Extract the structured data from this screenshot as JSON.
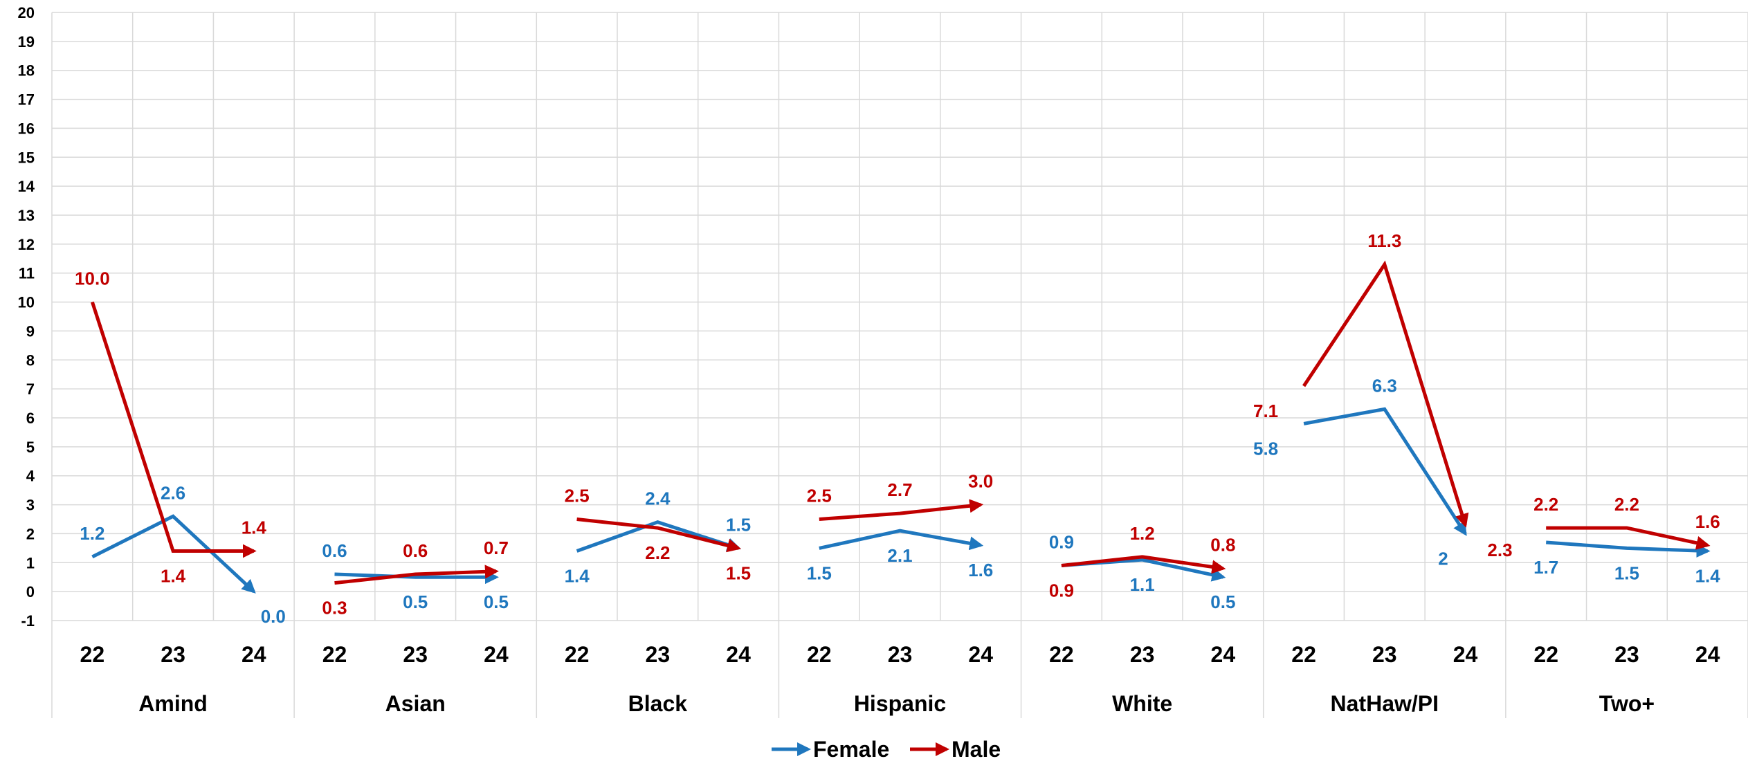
{
  "chart_data": {
    "type": "line",
    "title": "",
    "xlabel": "",
    "ylabel": "",
    "ylim": [
      -1,
      20
    ],
    "yticks": [
      "-1",
      "0",
      "1",
      "2",
      "3",
      "4",
      "5",
      "6",
      "7",
      "8",
      "9",
      "10",
      "11",
      "12",
      "13",
      "14",
      "15",
      "16",
      "17",
      "18",
      "19",
      "20"
    ],
    "groups": [
      "Amind",
      "Asian",
      "Black",
      "Hispanic",
      "White",
      "NatHaw/PI",
      "Two+"
    ],
    "sub_categories": [
      "22",
      "23",
      "24"
    ],
    "grid": true,
    "legend_position": "bottom",
    "series": [
      {
        "name": "Female",
        "color": "#1F77BE",
        "values": [
          [
            1.2,
            2.6,
            0.0
          ],
          [
            0.6,
            0.5,
            0.5
          ],
          [
            1.4,
            2.4,
            1.5
          ],
          [
            1.5,
            2.1,
            1.6
          ],
          [
            0.9,
            1.1,
            0.5
          ],
          [
            5.8,
            6.3,
            2.0
          ],
          [
            1.7,
            1.5,
            1.4
          ]
        ],
        "labels": [
          [
            "1.2",
            "2.6",
            "0.0"
          ],
          [
            "0.6",
            "0.5",
            "0.5"
          ],
          [
            "1.4",
            "2.4",
            "1.5"
          ],
          [
            "1.5",
            "2.1",
            "1.6"
          ],
          [
            "0.9",
            "1.1",
            "0.5"
          ],
          [
            "5.8",
            "6.3",
            "2"
          ],
          [
            "1.7",
            "1.5",
            "1.4"
          ]
        ]
      },
      {
        "name": "Male",
        "color": "#C00000",
        "values": [
          [
            10.0,
            1.4,
            1.4
          ],
          [
            0.3,
            0.6,
            0.7
          ],
          [
            2.5,
            2.2,
            1.5
          ],
          [
            2.5,
            2.7,
            3.0
          ],
          [
            0.9,
            1.2,
            0.8
          ],
          [
            7.1,
            11.3,
            2.3
          ],
          [
            2.2,
            2.2,
            1.6
          ]
        ],
        "labels": [
          [
            "10.0",
            "1.4",
            "1.4"
          ],
          [
            "0.3",
            "0.6",
            "0.7"
          ],
          [
            "2.5",
            "2.2",
            "1.5"
          ],
          [
            "2.5",
            "2.7",
            "3.0"
          ],
          [
            "0.9",
            "1.2",
            "0.8"
          ],
          [
            "7.1",
            "11.3",
            "2.3"
          ],
          [
            "2.2",
            "2.2",
            "1.6"
          ]
        ]
      }
    ]
  },
  "legend": {
    "female_label": "Female",
    "male_label": "Male"
  }
}
